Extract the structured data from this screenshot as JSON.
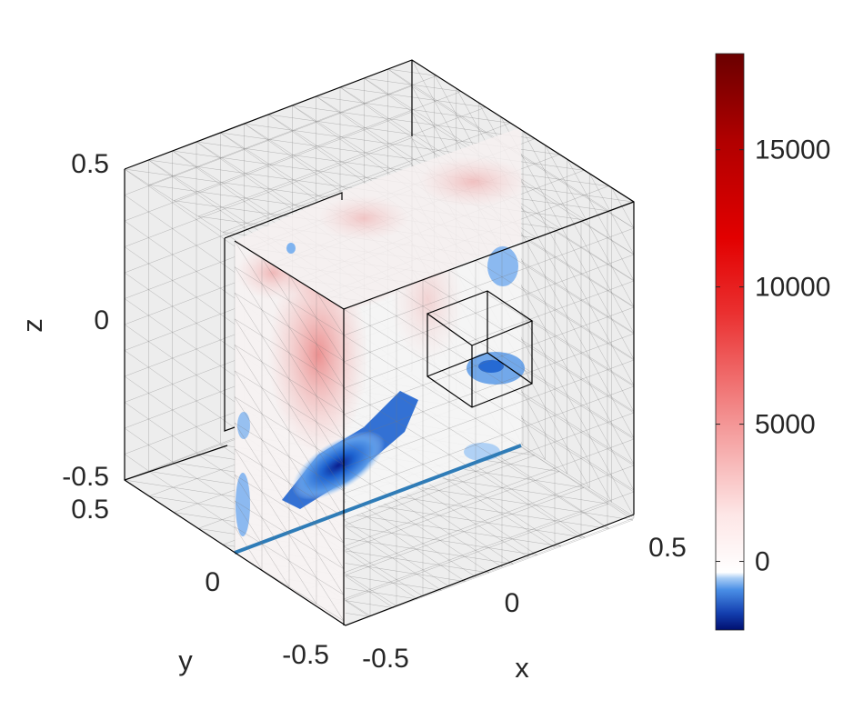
{
  "chart_data": {
    "type": "heatmap",
    "title": "",
    "xlabel": "x",
    "ylabel": "y",
    "zlabel": "z",
    "xlim": [
      -0.5,
      0.5
    ],
    "ylim": [
      -0.5,
      0.5
    ],
    "zlim": [
      -0.5,
      0.5
    ],
    "x_ticks": [
      "-0.5",
      "0",
      "0.5"
    ],
    "y_ticks": [
      "-0.5",
      "0",
      "0.5"
    ],
    "z_ticks": [
      "-0.5",
      "0",
      "0.5"
    ],
    "colorbar": {
      "ticks": [
        "0",
        "5000",
        "10000",
        "15000"
      ],
      "tick_values": [
        0,
        5000,
        10000,
        15000
      ],
      "range": [
        -2500,
        18500
      ],
      "colormap": "blue-white-red",
      "neg_colors": [
        "#0a1f8f",
        "#1446b8",
        "#1e63d0",
        "#3b82e0",
        "#7fb3ef",
        "#b9d6f6"
      ],
      "pos_colors": [
        "#ffffff",
        "#fbe0e0",
        "#f6b3b3",
        "#f08080",
        "#e64545",
        "#e01010",
        "#b80000",
        "#8a0000",
        "#640000"
      ]
    },
    "grid": true,
    "slice": {
      "peak_positive": 4000,
      "peak_negative": -2400
    }
  }
}
